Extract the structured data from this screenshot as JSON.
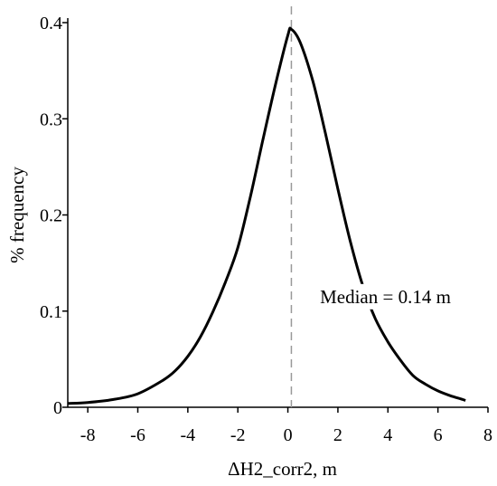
{
  "chart_data": {
    "type": "line",
    "title": "",
    "xlabel": "ΔH2_corr2, m",
    "ylabel": "% frequency",
    "xlim": [
      -8.8,
      8
    ],
    "ylim": [
      0,
      0.4
    ],
    "x_ticks": [
      -8,
      -6,
      -4,
      -2,
      0,
      2,
      4,
      6,
      8
    ],
    "x_tick_labels": [
      "-8",
      "-6",
      "-4",
      "-2",
      "0",
      "2",
      "4",
      "6",
      "8"
    ],
    "y_ticks": [
      0,
      0.1,
      0.2,
      0.3,
      0.4
    ],
    "y_tick_labels": [
      "0",
      "0.1",
      "0.2",
      "0.3",
      "0.4"
    ],
    "grid": false,
    "legend": "none",
    "series": [
      {
        "color": "#000000",
        "x": [
          -8.8,
          -8,
          -7,
          -6,
          -5,
          -4.5,
          -4,
          -3.5,
          -3,
          -2.5,
          -2,
          -1.5,
          -1,
          -0.5,
          0,
          0.14,
          0.5,
          1,
          1.5,
          2,
          2.5,
          3,
          3.5,
          4,
          4.5,
          5,
          5.5,
          6,
          6.5,
          7,
          7.1
        ],
        "y": [
          0.004,
          0.005,
          0.008,
          0.014,
          0.028,
          0.038,
          0.053,
          0.073,
          0.099,
          0.13,
          0.166,
          0.219,
          0.278,
          0.335,
          0.387,
          0.393,
          0.379,
          0.339,
          0.285,
          0.227,
          0.172,
          0.126,
          0.092,
          0.068,
          0.049,
          0.033,
          0.024,
          0.017,
          0.012,
          0.008,
          0.007
        ]
      }
    ],
    "reference_line": {
      "x": 0.14,
      "style": "dashed",
      "color": "#999999"
    },
    "annotation": {
      "text": "Median = 0.14 m",
      "x": 3.9,
      "y": 0.115
    }
  }
}
